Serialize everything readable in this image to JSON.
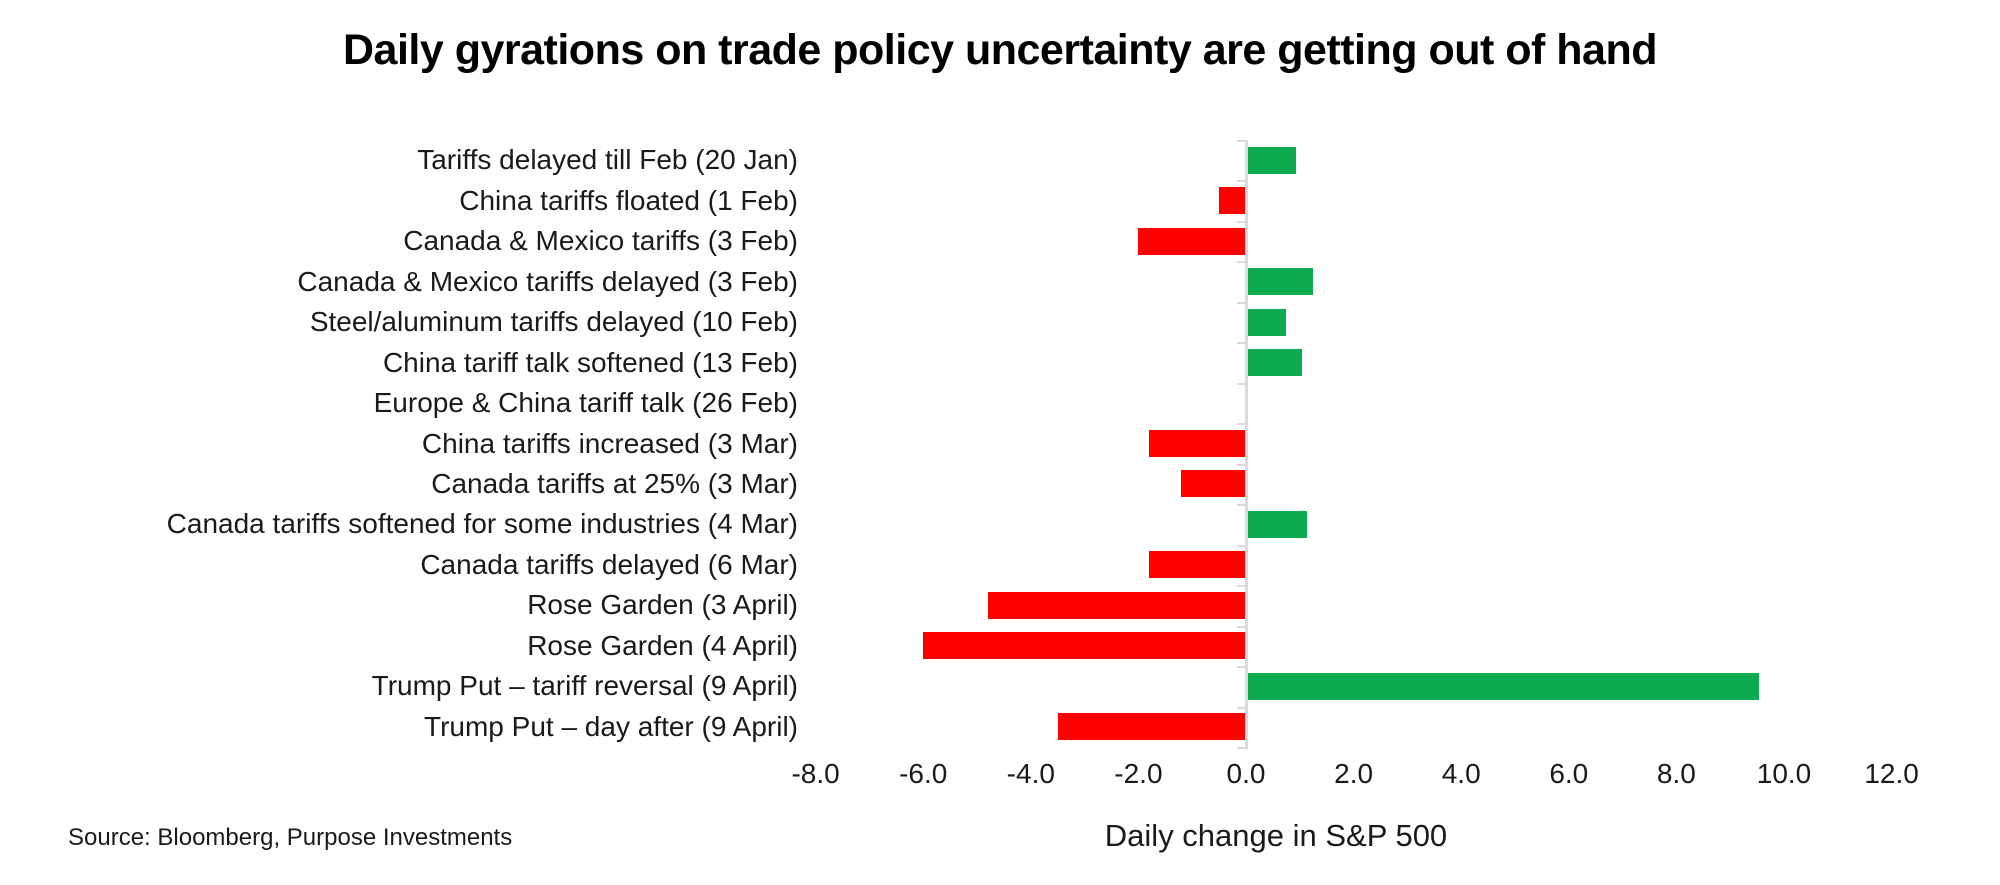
{
  "title": "Daily gyrations on trade policy uncertainty are getting out of hand",
  "source": "Source: Bloomberg, Purpose Investments",
  "colors": {
    "positive_bar": "#0cab50",
    "negative_bar": "#fe0000",
    "axis": "#d9dcdd",
    "text": "#1a1a1a",
    "title_text": "#000000"
  },
  "chart_data": {
    "type": "bar",
    "orientation": "horizontal",
    "title": "Daily gyrations on trade policy uncertainty are getting out of hand",
    "xlabel": "Daily change in S&P 500",
    "ylabel": "",
    "xlim": [
      -8.0,
      12.0
    ],
    "grid": false,
    "legend": false,
    "xticks": [
      "-8.0",
      "-6.0",
      "-4.0",
      "-2.0",
      "0.0",
      "2.0",
      "4.0",
      "6.0",
      "8.0",
      "10.0",
      "12.0"
    ],
    "xtick_values": [
      -8,
      -6,
      -4,
      -2,
      0,
      2,
      4,
      6,
      8,
      10,
      12
    ],
    "categories": [
      "Tariffs delayed till Feb (20 Jan)",
      "China tariffs floated (1 Feb)",
      "Canada & Mexico tariffs (3 Feb)",
      "Canada & Mexico tariffs delayed (3 Feb)",
      "Steel/aluminum tariffs delayed (10 Feb)",
      "China tariff talk softened (13 Feb)",
      "Europe & China tariff talk (26 Feb)",
      "China tariffs increased (3 Mar)",
      "Canada tariffs at 25% (3 Mar)",
      "Canada tariffs softened for some industries (4 Mar)",
      "Canada tariffs delayed (6 Mar)",
      "Rose Garden (3 April)",
      "Rose Garden (4 April)",
      "Trump Put – tariff reversal (9 April)",
      "Trump Put – day after (9 April)"
    ],
    "values": [
      0.9,
      -0.5,
      -2.0,
      1.2,
      0.7,
      1.0,
      0.0,
      -1.8,
      -1.2,
      1.1,
      -1.8,
      -4.8,
      -6.0,
      9.5,
      -3.5
    ],
    "positive_color": "#0cab50",
    "negative_color": "#fe0000"
  }
}
